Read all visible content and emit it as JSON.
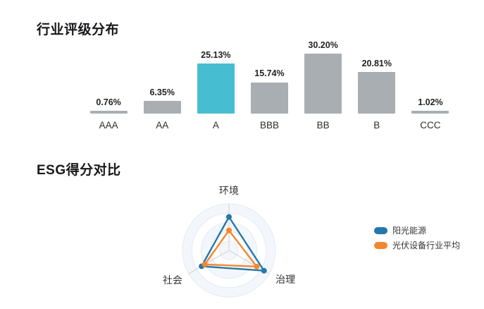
{
  "sections": {
    "rating": {
      "title": "行业评级分布"
    },
    "esg": {
      "title": "ESG得分对比"
    }
  },
  "colors": {
    "bar_default": "#a9aeb2",
    "bar_highlight": "#47bdd2",
    "series_blue": "#2478a9",
    "series_orange": "#f5862e",
    "axis_line": "#d6d6d6",
    "ring_stroke": "#e3eaf4",
    "ring_fill_light": "#f3f7fc",
    "ring_fill_white": "#ffffff"
  },
  "chart_data": [
    {
      "type": "bar",
      "title": "行业评级分布",
      "categories": [
        "AAA",
        "AA",
        "A",
        "BBB",
        "BB",
        "B",
        "CCC"
      ],
      "values": [
        0.76,
        6.35,
        25.13,
        15.74,
        30.2,
        20.81,
        1.02
      ],
      "value_labels": [
        "0.76%",
        "6.35%",
        "25.13%",
        "15.74%",
        "30.20%",
        "20.81%",
        "1.02%"
      ],
      "unit": "%",
      "highlight_index": 2,
      "highlight_category": "A",
      "ylim": [
        0,
        30.2
      ],
      "grid": false,
      "axis_lines": false,
      "value_labels_position": "above-bar"
    },
    {
      "type": "radar",
      "title": "ESG得分对比",
      "axes": [
        "环境",
        "治理",
        "社会"
      ],
      "max": 100,
      "rings": 5,
      "series": [
        {
          "name": "阳光能源",
          "color": "#2478a9",
          "values": [
            72,
            87,
            68
          ]
        },
        {
          "name": "光伏设备行业平均",
          "color": "#f5862e",
          "values": [
            43,
            69,
            60
          ]
        }
      ],
      "legend_position": "right"
    }
  ]
}
